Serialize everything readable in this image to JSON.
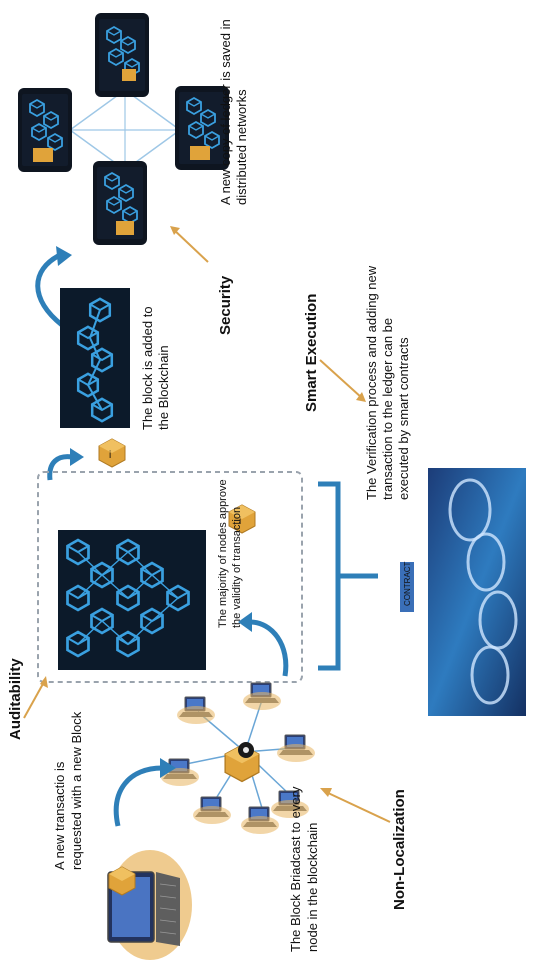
{
  "labels": {
    "auditability": "Auditability",
    "security": "Security",
    "smart_execution": "Smart Execution",
    "non_localization": "Non-Localization"
  },
  "steps": {
    "new_transaction": [
      "A new transactio is",
      "requested with a new Block"
    ],
    "broadcast": [
      "The Block Briadcast to every",
      "node in the blockchain"
    ],
    "majority": [
      "The majority of nodes approve",
      "the validity of transaction"
    ],
    "block_added": [
      "The block is added to",
      "the Blockchain"
    ],
    "ledger_copy": [
      "A new copy of ledger is saved in",
      "distributed networks"
    ],
    "smart_contracts": [
      "The Verification process and adding new",
      "transaction to the ledger can be",
      "executed by smart contracts"
    ]
  },
  "contract_label": "CONTRACT",
  "colors": {
    "arrow_blue": "#2e7fb8",
    "chain_blue": "#3aa0e0",
    "dark_panel": "#0c1a2a",
    "gold": "#e0a33a",
    "pointer_orange": "#d9a24c",
    "dashed_border": "#9aa3ad"
  }
}
